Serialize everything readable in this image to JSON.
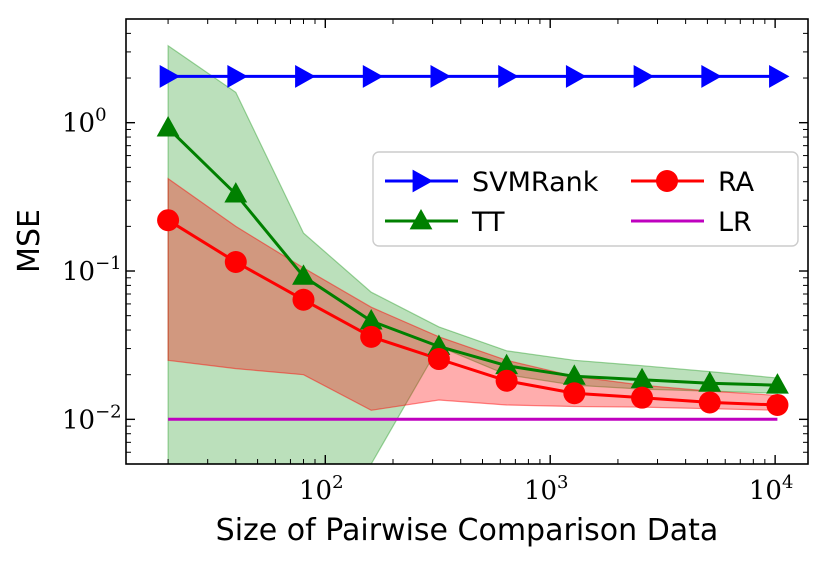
{
  "chart_data": {
    "type": "line",
    "xscale": "log",
    "yscale": "log",
    "xlabel": "Size of Pairwise Comparison Data",
    "ylabel": "MSE",
    "xlim": [
      13,
      14000
    ],
    "ylim": [
      0.005,
      5.0
    ],
    "x": [
      20,
      40,
      80,
      160,
      320,
      640,
      1280,
      2560,
      5120,
      10240
    ],
    "x_ticks": [
      {
        "value": 100,
        "base": "10",
        "exp": "2"
      },
      {
        "value": 1000,
        "base": "10",
        "exp": "3"
      },
      {
        "value": 10000,
        "base": "10",
        "exp": "4"
      }
    ],
    "y_ticks": [
      {
        "value": 1,
        "base": "10",
        "exp": "0"
      },
      {
        "value": 0.1,
        "base": "10",
        "exp": "−1"
      },
      {
        "value": 0.01,
        "base": "10",
        "exp": "−2"
      }
    ],
    "series": [
      {
        "name": "SVMRank",
        "color": "#0000ff",
        "marker": "triangle-right",
        "x": [
          20,
          40,
          80,
          160,
          320,
          640,
          1280,
          2560,
          5120,
          10240
        ],
        "values": [
          2.05,
          2.05,
          2.05,
          2.05,
          2.05,
          2.05,
          2.05,
          2.05,
          2.05,
          2.05
        ]
      },
      {
        "name": "TT",
        "color": "#008000",
        "marker": "triangle-up",
        "x": [
          20,
          40,
          80,
          160,
          320,
          640,
          1280,
          2560,
          5120,
          10240
        ],
        "values": [
          0.92,
          0.33,
          0.092,
          0.046,
          0.031,
          0.023,
          0.0195,
          0.0185,
          0.0175,
          0.017
        ],
        "band_upper": [
          3.3,
          1.6,
          0.18,
          0.072,
          0.042,
          0.029,
          0.025,
          0.023,
          0.021,
          0.019
        ],
        "band_lower": [
          0.005,
          0.005,
          0.005,
          0.005,
          0.031,
          0.02,
          0.017,
          0.016,
          0.0155,
          0.015
        ],
        "band_color": "#2ca02c"
      },
      {
        "name": "RA",
        "color": "#ff0000",
        "marker": "circle",
        "x": [
          20,
          40,
          80,
          160,
          320,
          640,
          1280,
          2560,
          5120,
          10240
        ],
        "values": [
          0.22,
          0.115,
          0.064,
          0.036,
          0.0255,
          0.0182,
          0.015,
          0.014,
          0.013,
          0.0125
        ],
        "band_upper": [
          0.42,
          0.2,
          0.105,
          0.057,
          0.036,
          0.025,
          0.0195,
          0.017,
          0.0155,
          0.0145
        ],
        "band_lower": [
          0.025,
          0.022,
          0.02,
          0.0115,
          0.0135,
          0.0125,
          0.0122,
          0.0121,
          0.0118,
          0.0115
        ],
        "band_color": "#ff0000"
      },
      {
        "name": "LR",
        "color": "#bf00bf",
        "marker": "none",
        "x": [
          20,
          10240
        ],
        "values": [
          0.01,
          0.01
        ]
      }
    ],
    "legend": {
      "placement": "center-right",
      "entries": [
        "SVMRank",
        "RA",
        "TT",
        "LR"
      ]
    }
  }
}
